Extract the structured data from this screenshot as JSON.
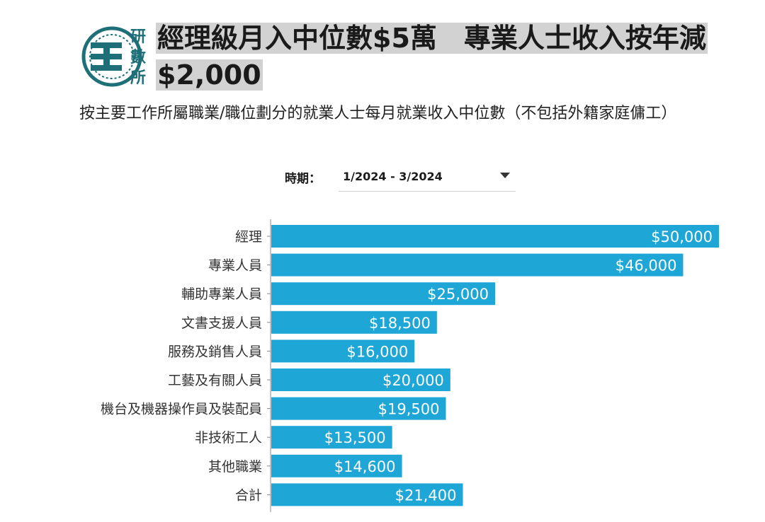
{
  "header": {
    "logo_text": "研數所",
    "title": "經理級月入中位數$5萬　專業人士收入按年減$2,000",
    "subtitle": "按主要工作所屬職業/職位劃分的就業人士每月就業收入中位數（不包括外籍家庭傭工）"
  },
  "filter": {
    "label": "時期：",
    "value": "1/2024 - 3/2024",
    "icon": "chevron-down-icon"
  },
  "colors": {
    "bar": "#1ea6d6",
    "axis": "#888888",
    "label_text": "#ffffff",
    "logo": "#1e6f78",
    "title_highlight": "#d2d2d2"
  },
  "chart_data": {
    "type": "bar",
    "orientation": "horizontal",
    "categories": [
      "經理",
      "專業人員",
      "輔助專業人員",
      "文書支援人員",
      "服務及銷售人員",
      "工藝及有關人員",
      "機台及機器操作員及裝配員",
      "非技術工人",
      "其他職業",
      "合計"
    ],
    "values": [
      50000,
      46000,
      25000,
      18500,
      16000,
      20000,
      19500,
      13500,
      14600,
      21400
    ],
    "data_labels": [
      "$50,000",
      "$46,000",
      "$25,000",
      "$18,500",
      "$16,000",
      "$20,000",
      "$19,500",
      "$13,500",
      "$14,600",
      "$21,400"
    ],
    "xlim": [
      0,
      50000
    ],
    "grid": false,
    "legend": "none"
  }
}
